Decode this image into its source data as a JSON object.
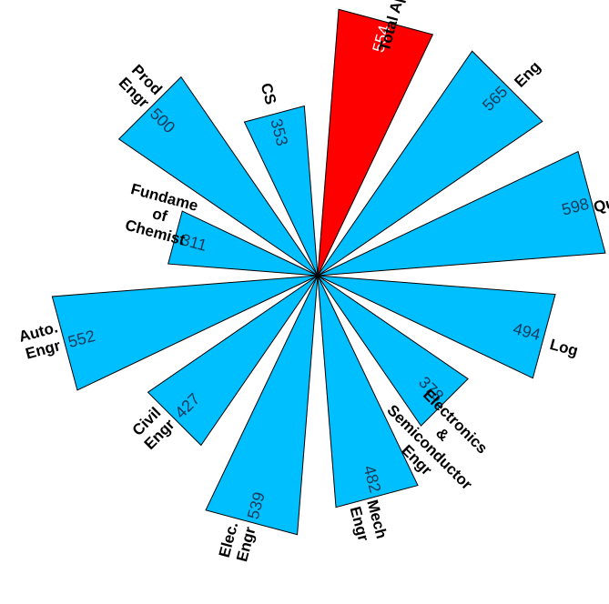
{
  "chart_data": {
    "type": "polar-bar",
    "title": "",
    "radius_max": 600,
    "categories": [
      "Total Aptitude",
      "Eng",
      "Quant",
      "Log",
      "Electronics & Semiconductor Engr",
      "Mech Engr",
      "Elec. Engr",
      "Civil Engr",
      "Auto. Engr",
      "Fundamentals of Chemistry",
      "Prod Engr",
      "CS"
    ],
    "label_lines": [
      [
        "Total Aptitude"
      ],
      [
        "Eng"
      ],
      [
        "Quant"
      ],
      [
        "Log"
      ],
      [
        "Electronics",
        "&",
        "Semiconductor",
        "Engr"
      ],
      [
        "Mech",
        "Engr"
      ],
      [
        "Elec.",
        "Engr"
      ],
      [
        "Civil",
        "Engr"
      ],
      [
        "Auto.",
        "Engr"
      ],
      [
        "Fundame",
        "of",
        "Chemist"
      ],
      [
        "Prod",
        "Engr"
      ],
      [
        "CS"
      ]
    ],
    "values": [
      554,
      565,
      598,
      494,
      378,
      482,
      539,
      427,
      552,
      311,
      500,
      353
    ],
    "value_labels": [
      "554",
      "565",
      "598",
      "494",
      "378",
      "482",
      "539",
      "427",
      "552",
      "311",
      "500",
      "353"
    ],
    "highlight_index": 0,
    "colors": {
      "bar": "#00BFFF",
      "highlight": "#FF0000",
      "label_on_bar": "#1a3a5a",
      "label_on_highlight": "#ffffff",
      "outline": "#000000"
    }
  }
}
